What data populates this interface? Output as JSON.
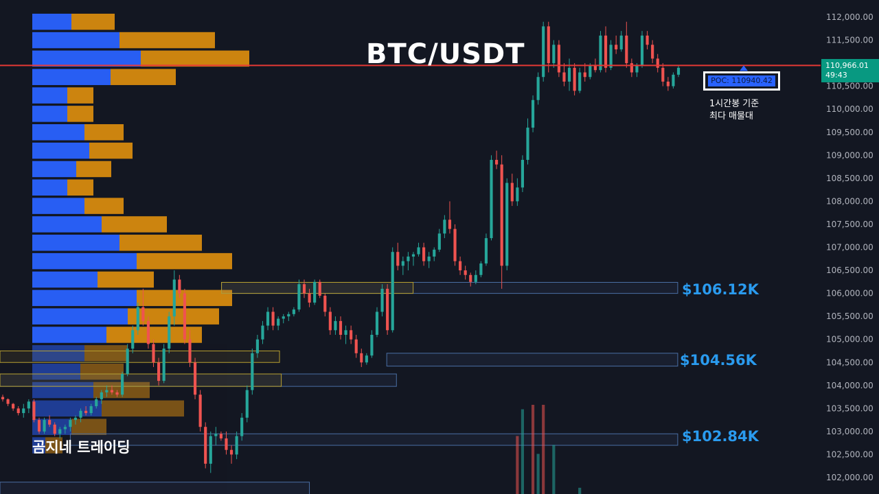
{
  "title": "BTC/USDT",
  "watermark": "곰지네 트레이딩",
  "price_tag": {
    "price": "110,966.01",
    "countdown": "49:43",
    "color": "#089981"
  },
  "poc": {
    "label": "POC: 110940.42",
    "note": "1시간봉 기준\n최다 매물대"
  },
  "levels": [
    {
      "label": "$106.12K",
      "price": 106120
    },
    {
      "label": "$104.56K",
      "price": 104560
    },
    {
      "label": "$102.84K",
      "price": 102840
    }
  ],
  "chart_data": {
    "type": "candlestick",
    "title": "BTC/USDT",
    "ylim": [
      101800,
      112300
    ],
    "y_ticks": [
      "112,000.00",
      "111,500.00",
      "111,000.00",
      "110,500.00",
      "110,000.00",
      "109,500.00",
      "109,000.00",
      "108,500.00",
      "108,000.00",
      "107,500.00",
      "107,000.00",
      "106,500.00",
      "106,000.00",
      "105,500.00",
      "105,000.00",
      "104,500.00",
      "104,000.00",
      "103,500.00",
      "103,000.00",
      "102,500.00",
      "102,000.00"
    ],
    "current_price": 110966.01,
    "poc_price": 110940.42,
    "colors": {
      "up": "#26a69a",
      "down": "#ef5350",
      "buy_volume": "#2962ff",
      "sell_volume": "#d68a0f",
      "poc_line": "#e53935",
      "zone": "#4a6fa5",
      "zone_gold": "#b8a030"
    },
    "candles": [
      [
        103750,
        103800,
        103650,
        103700
      ],
      [
        103700,
        103720,
        103550,
        103600
      ],
      [
        103600,
        103620,
        103450,
        103500
      ],
      [
        103500,
        103550,
        103350,
        103400
      ],
      [
        103400,
        103600,
        103300,
        103500
      ],
      [
        103500,
        103700,
        103400,
        103650
      ],
      [
        103650,
        103700,
        103200,
        103250
      ],
      [
        103250,
        103300,
        102950,
        103000
      ],
      [
        103000,
        103300,
        102950,
        103250
      ],
      [
        103250,
        103350,
        103100,
        103150
      ],
      [
        103150,
        103200,
        102900,
        102950
      ],
      [
        102950,
        103100,
        102850,
        103050
      ],
      [
        103050,
        103150,
        102950,
        103100
      ],
      [
        103100,
        103300,
        103000,
        103250
      ],
      [
        103250,
        103350,
        103150,
        103300
      ],
      [
        103300,
        103500,
        103200,
        103450
      ],
      [
        103450,
        103550,
        103350,
        103400
      ],
      [
        103400,
        103600,
        103350,
        103550
      ],
      [
        103550,
        103750,
        103500,
        103700
      ],
      [
        103700,
        103900,
        103600,
        103850
      ],
      [
        103850,
        104000,
        103750,
        103900
      ],
      [
        103900,
        104000,
        103800,
        103850
      ],
      [
        103850,
        103900,
        103750,
        103800
      ],
      [
        103800,
        104300,
        103750,
        104250
      ],
      [
        104250,
        104900,
        104200,
        104800
      ],
      [
        104800,
        105300,
        104700,
        105200
      ],
      [
        105200,
        105800,
        105100,
        105700
      ],
      [
        105700,
        106100,
        105300,
        105400
      ],
      [
        105400,
        105500,
        104800,
        104900
      ],
      [
        104900,
        105000,
        104400,
        104500
      ],
      [
        104500,
        104600,
        104000,
        104100
      ],
      [
        104100,
        104900,
        104050,
        104800
      ],
      [
        104800,
        105600,
        104700,
        105500
      ],
      [
        105500,
        106500,
        105300,
        106300
      ],
      [
        106300,
        106400,
        105900,
        106000
      ],
      [
        106000,
        106100,
        104900,
        105000
      ],
      [
        105000,
        105200,
        104400,
        104500
      ],
      [
        104500,
        104600,
        103700,
        103800
      ],
      [
        103800,
        103900,
        103000,
        103100
      ],
      [
        103100,
        103200,
        102200,
        102300
      ],
      [
        102300,
        103000,
        102100,
        102900
      ],
      [
        102900,
        103100,
        102700,
        102950
      ],
      [
        102950,
        103000,
        102800,
        102850
      ],
      [
        102850,
        103000,
        102500,
        102600
      ],
      [
        102600,
        102700,
        102300,
        102500
      ],
      [
        102500,
        103000,
        102400,
        102900
      ],
      [
        102900,
        103400,
        102800,
        103300
      ],
      [
        103300,
        104000,
        103200,
        103900
      ],
      [
        103900,
        104800,
        103800,
        104700
      ],
      [
        104700,
        105100,
        104600,
        105000
      ],
      [
        105000,
        105400,
        104900,
        105300
      ],
      [
        105300,
        105700,
        105200,
        105600
      ],
      [
        105600,
        105700,
        105200,
        105300
      ],
      [
        105300,
        105500,
        105200,
        105450
      ],
      [
        105450,
        105550,
        105350,
        105500
      ],
      [
        105500,
        105600,
        105400,
        105550
      ],
      [
        105550,
        105700,
        105500,
        105650
      ],
      [
        105650,
        106300,
        105600,
        106200
      ],
      [
        106200,
        106300,
        105900,
        106000
      ],
      [
        106000,
        106100,
        105700,
        105800
      ],
      [
        105800,
        106300,
        105750,
        106250
      ],
      [
        106250,
        106300,
        105900,
        105950
      ],
      [
        105950,
        106000,
        105500,
        105600
      ],
      [
        105600,
        105700,
        105100,
        105200
      ],
      [
        105200,
        105500,
        105100,
        105400
      ],
      [
        105400,
        105500,
        105000,
        105100
      ],
      [
        105100,
        105300,
        104900,
        105200
      ],
      [
        105200,
        105300,
        104900,
        105000
      ],
      [
        105000,
        105100,
        104600,
        104700
      ],
      [
        104700,
        104800,
        104400,
        104500
      ],
      [
        104500,
        104700,
        104450,
        104650
      ],
      [
        104650,
        105200,
        104600,
        105100
      ],
      [
        105100,
        105700,
        105050,
        105600
      ],
      [
        105600,
        106200,
        105500,
        106100
      ],
      [
        106100,
        106200,
        105100,
        105200
      ],
      [
        105200,
        107000,
        105150,
        106900
      ],
      [
        106900,
        107100,
        106500,
        106600
      ],
      [
        106600,
        106800,
        106400,
        106700
      ],
      [
        106700,
        106900,
        106500,
        106800
      ],
      [
        106800,
        106900,
        106600,
        106850
      ],
      [
        106850,
        107100,
        106800,
        107000
      ],
      [
        107000,
        107100,
        106600,
        106700
      ],
      [
        106700,
        106900,
        106550,
        106800
      ],
      [
        106800,
        107000,
        106700,
        106950
      ],
      [
        106950,
        107400,
        106900,
        107300
      ],
      [
        107300,
        107700,
        107200,
        107600
      ],
      [
        107600,
        108000,
        107300,
        107400
      ],
      [
        107400,
        107500,
        106600,
        106700
      ],
      [
        106700,
        106800,
        106400,
        106500
      ],
      [
        106500,
        106600,
        106300,
        106400
      ],
      [
        106400,
        106450,
        106150,
        106250
      ],
      [
        106250,
        106500,
        106200,
        106400
      ],
      [
        106400,
        106700,
        106350,
        106650
      ],
      [
        106650,
        107300,
        106600,
        107200
      ],
      [
        107200,
        109000,
        107150,
        108900
      ],
      [
        108900,
        109100,
        108700,
        108800
      ],
      [
        108800,
        109000,
        106100,
        106600
      ],
      [
        106600,
        108500,
        106500,
        108400
      ],
      [
        108400,
        108600,
        107900,
        108000
      ],
      [
        108000,
        108500,
        107900,
        108300
      ],
      [
        108300,
        109000,
        108200,
        108900
      ],
      [
        108900,
        109800,
        108800,
        109600
      ],
      [
        109600,
        110300,
        109500,
        110200
      ],
      [
        110200,
        110800,
        110100,
        110700
      ],
      [
        110700,
        111900,
        110600,
        111800
      ],
      [
        111800,
        111900,
        110800,
        111000
      ],
      [
        111000,
        111500,
        110900,
        111400
      ],
      [
        111400,
        111500,
        110700,
        110800
      ],
      [
        110800,
        111000,
        110500,
        110600
      ],
      [
        110600,
        111100,
        110400,
        110900
      ],
      [
        110900,
        111000,
        110300,
        110400
      ],
      [
        110400,
        110900,
        110350,
        110800
      ],
      [
        110800,
        111000,
        110600,
        110700
      ],
      [
        110700,
        111000,
        110650,
        110950
      ],
      [
        110950,
        111100,
        110800,
        110850
      ],
      [
        110850,
        111700,
        110800,
        111600
      ],
      [
        111600,
        111800,
        110800,
        110900
      ],
      [
        110900,
        111500,
        110850,
        111400
      ],
      [
        111400,
        111600,
        111200,
        111300
      ],
      [
        111300,
        111700,
        111250,
        111600
      ],
      [
        111600,
        111900,
        110900,
        111000
      ],
      [
        111000,
        111100,
        110700,
        110800
      ],
      [
        110800,
        111000,
        110700,
        110950
      ],
      [
        110950,
        111700,
        110900,
        111600
      ],
      [
        111600,
        111700,
        111300,
        111400
      ],
      [
        111400,
        111500,
        111000,
        111100
      ],
      [
        111100,
        111200,
        110800,
        110900
      ],
      [
        110900,
        111000,
        110500,
        110600
      ],
      [
        110600,
        110700,
        110400,
        110500
      ],
      [
        110500,
        110800,
        110450,
        110750
      ],
      [
        110750,
        110950,
        110700,
        110900
      ]
    ],
    "volume_profile": [
      {
        "price": 111900,
        "buy": 57,
        "sell": 63
      },
      {
        "price": 111500,
        "buy": 127,
        "sell": 139
      },
      {
        "price": 111100,
        "buy": 158,
        "sell": 158
      },
      {
        "price": 110700,
        "buy": 114,
        "sell": 95
      },
      {
        "price": 110300,
        "buy": 51,
        "sell": 38
      },
      {
        "price": 109900,
        "buy": 51,
        "sell": 38
      },
      {
        "price": 109500,
        "buy": 76,
        "sell": 57
      },
      {
        "price": 109100,
        "buy": 83,
        "sell": 63
      },
      {
        "price": 108700,
        "buy": 64,
        "sell": 51
      },
      {
        "price": 108300,
        "buy": 51,
        "sell": 38
      },
      {
        "price": 107900,
        "buy": 76,
        "sell": 57
      },
      {
        "price": 107500,
        "buy": 101,
        "sell": 95
      },
      {
        "price": 107100,
        "buy": 127,
        "sell": 120
      },
      {
        "price": 106700,
        "buy": 152,
        "sell": 139
      },
      {
        "price": 106300,
        "buy": 95,
        "sell": 82
      },
      {
        "price": 105900,
        "buy": 152,
        "sell": 139
      },
      {
        "price": 105500,
        "buy": 139,
        "sell": 133
      },
      {
        "price": 105100,
        "buy": 108,
        "sell": 139
      },
      {
        "price": 104700,
        "buy": 76,
        "sell": 63
      },
      {
        "price": 104300,
        "buy": 70,
        "sell": 63
      },
      {
        "price": 103900,
        "buy": 89,
        "sell": 82
      },
      {
        "price": 103500,
        "buy": 101,
        "sell": 120
      },
      {
        "price": 103100,
        "buy": 57,
        "sell": 51
      },
      {
        "price": 102700,
        "buy": 19,
        "sell": 25
      }
    ],
    "volume_bars": [
      {
        "index": 99,
        "value": 65,
        "up": false
      },
      {
        "index": 100,
        "value": 95,
        "up": true
      },
      {
        "index": 102,
        "value": 100,
        "up": false
      },
      {
        "index": 103,
        "value": 45,
        "up": true
      },
      {
        "index": 104,
        "value": 100,
        "up": false
      },
      {
        "index": 106,
        "value": 55,
        "up": true
      },
      {
        "index": 111,
        "value": 7,
        "up": true
      }
    ],
    "zones": [
      {
        "price_top": 106240,
        "price_bottom": 106000,
        "x_from": 0.252,
        "x_to": 0.771,
        "style": "blue"
      },
      {
        "price_top": 106240,
        "price_bottom": 106000,
        "x_from": 0.252,
        "x_to": 0.47,
        "style": "gold"
      },
      {
        "price_top": 104700,
        "price_bottom": 104420,
        "x_from": 0.44,
        "x_to": 0.771,
        "style": "blue"
      },
      {
        "price_top": 104750,
        "price_bottom": 104500,
        "x_from": 0.0,
        "x_to": 0.318,
        "style": "gold"
      },
      {
        "price_top": 104250,
        "price_bottom": 103980,
        "x_from": 0.0,
        "x_to": 0.451,
        "style": "blue"
      },
      {
        "price_top": 104250,
        "price_bottom": 103980,
        "x_from": 0.0,
        "x_to": 0.32,
        "style": "gold"
      },
      {
        "price_top": 102950,
        "price_bottom": 102700,
        "x_from": 0.08,
        "x_to": 0.771,
        "style": "blue"
      },
      {
        "price_top": 101900,
        "price_bottom": 101600,
        "x_from": 0.0,
        "x_to": 0.352,
        "style": "blue"
      }
    ]
  }
}
